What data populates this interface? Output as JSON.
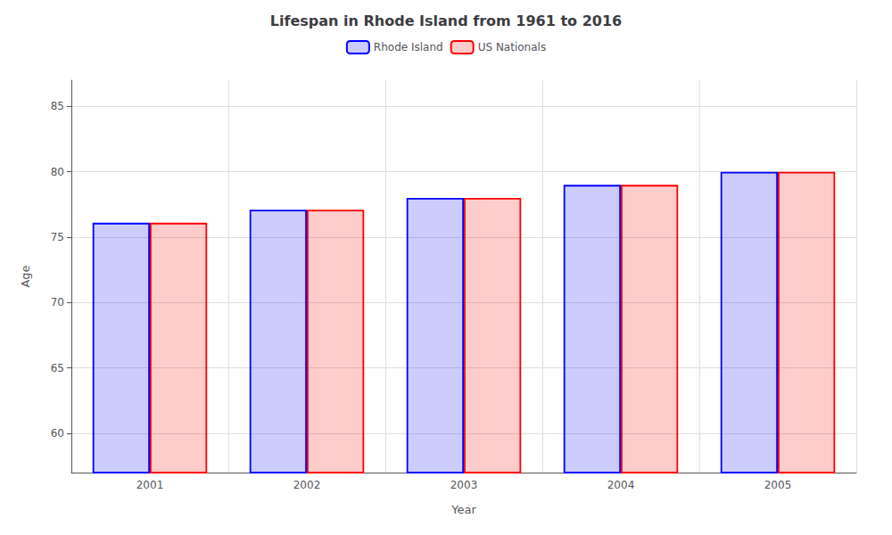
{
  "chart_data": {
    "type": "bar",
    "title": "Lifespan in Rhode Island from 1961 to 2016",
    "xlabel": "Year",
    "ylabel": "Age",
    "categories": [
      "2001",
      "2002",
      "2003",
      "2004",
      "2005"
    ],
    "series": [
      {
        "name": "Rhode Island",
        "color": "#0000ff",
        "values": [
          76.1,
          77.1,
          78.0,
          79.0,
          80.0
        ]
      },
      {
        "name": "US Nationals",
        "color": "#ff0000",
        "values": [
          76.1,
          77.1,
          78.0,
          79.0,
          80.0
        ]
      }
    ],
    "ylim": [
      57,
      87
    ],
    "yticks": [
      60,
      65,
      70,
      75,
      80,
      85
    ],
    "grid": true,
    "legend": "top"
  }
}
